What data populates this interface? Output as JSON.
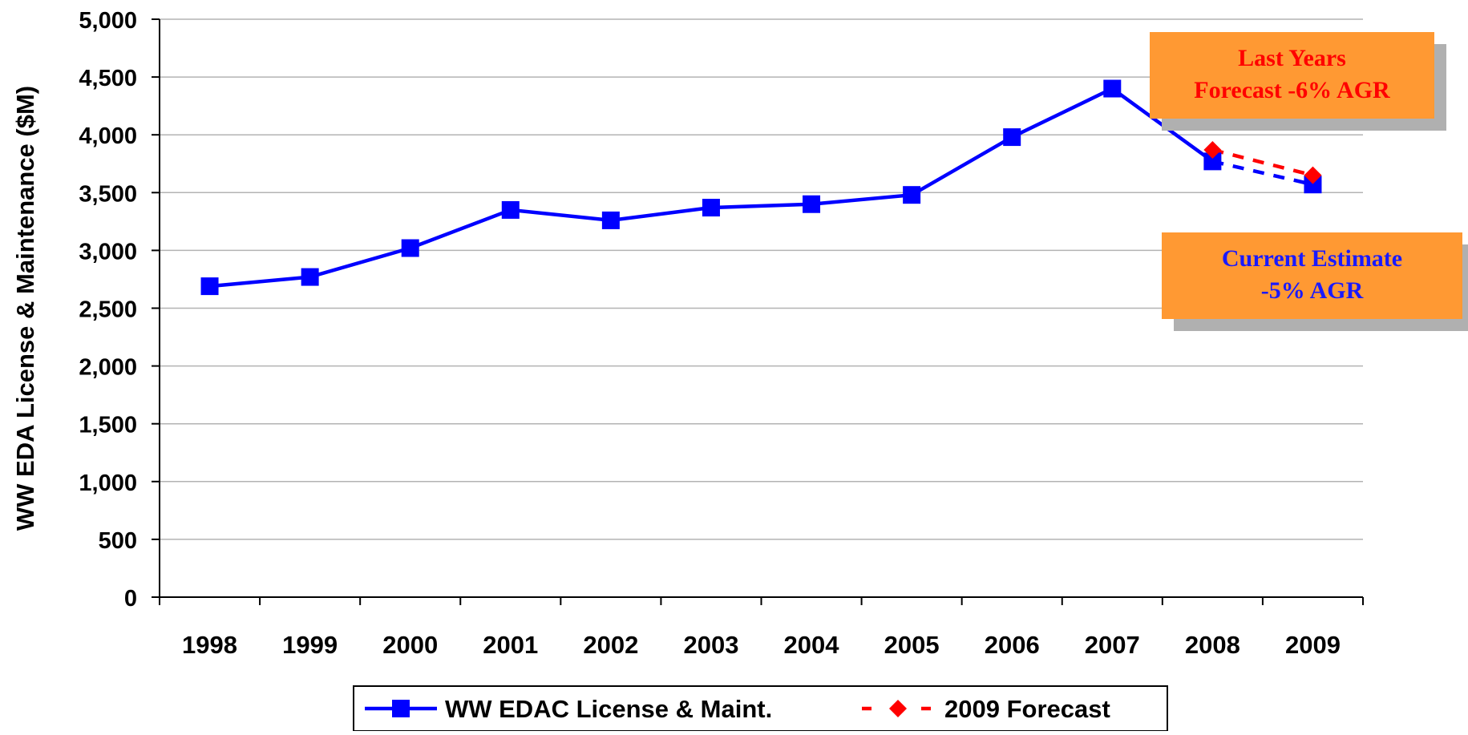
{
  "chart_data": {
    "type": "line",
    "ylabel": "WW EDA License & Maintenance ($M)",
    "xlabel": "",
    "ylim": [
      0,
      5000
    ],
    "yticks": [
      0,
      500,
      1000,
      1500,
      2000,
      2500,
      3000,
      3500,
      4000,
      4500,
      5000
    ],
    "ytick_labels": [
      "0",
      "500",
      "1,000",
      "1,500",
      "2,000",
      "2,500",
      "3,000",
      "3,500",
      "4,000",
      "4,500",
      "5,000"
    ],
    "categories": [
      "1998",
      "1999",
      "2000",
      "2001",
      "2002",
      "2003",
      "2004",
      "2005",
      "2006",
      "2007",
      "2008",
      "2009"
    ],
    "grid": "horizontal",
    "legend_position": "bottom",
    "series": [
      {
        "name": "WW EDAC License & Maint.",
        "color": "#0000ff",
        "marker": "square",
        "values": [
          2690,
          2770,
          3020,
          3350,
          3260,
          3370,
          3400,
          3480,
          3980,
          4400,
          3770,
          3570
        ],
        "dashed_from_index": 10
      },
      {
        "name": "2009 Forecast",
        "color": "#ff0000",
        "marker": "diamond",
        "line": "dashed",
        "values": [
          null,
          null,
          null,
          null,
          null,
          null,
          null,
          null,
          null,
          null,
          3870,
          3650
        ]
      }
    ],
    "annotations": [
      {
        "lines": [
          "Last Years",
          "Forecast -6% AGR"
        ],
        "text_color": "#ff0000",
        "fill": "#ff9933"
      },
      {
        "lines": [
          "Current Estimate",
          "-5% AGR"
        ],
        "text_color": "#1a1aff",
        "fill": "#ff9933"
      }
    ]
  }
}
